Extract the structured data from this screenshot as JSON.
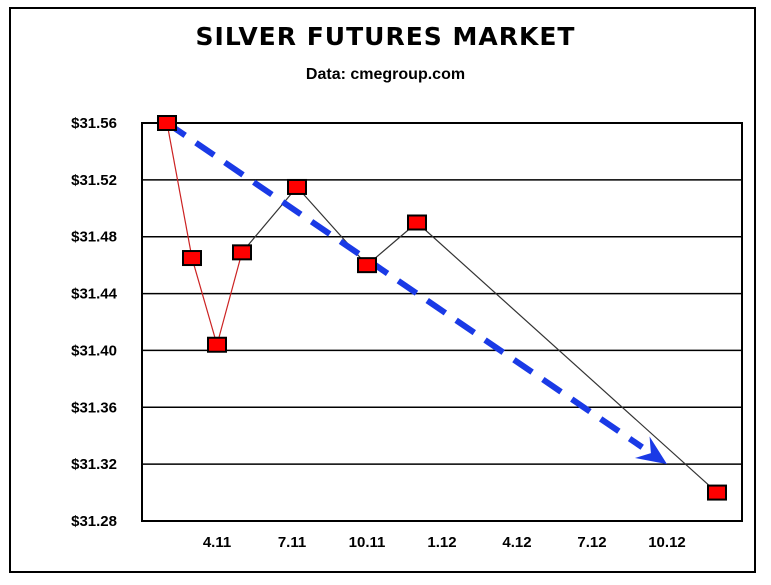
{
  "chart_data": {
    "type": "line",
    "title": "SILVER FUTURES MARKET",
    "subtitle": "Data: cmegroup.com",
    "xlabel": "",
    "ylabel": "",
    "y_ticks": [
      "$31.28",
      "$31.32",
      "$31.36",
      "$31.40",
      "$31.44",
      "$31.48",
      "$31.52",
      "$31.56"
    ],
    "x_ticks": [
      "4.11",
      "7.11",
      "10.11",
      "1.12",
      "4.12",
      "7.12",
      "10.12"
    ],
    "ylim": [
      31.28,
      31.56
    ],
    "grid": true,
    "series": [
      {
        "color": "#ff0000",
        "line_colors": [
          "#cc2222",
          "#cc2222",
          "#cc2222",
          "#333333",
          "#333333",
          "#333333",
          "#333333"
        ],
        "points": [
          {
            "x": 1.0,
            "y": 31.56
          },
          {
            "x": 2.0,
            "y": 31.465
          },
          {
            "x": 3.0,
            "y": 31.404
          },
          {
            "x": 4.0,
            "y": 31.469
          },
          {
            "x": 6.2,
            "y": 31.515
          },
          {
            "x": 9.0,
            "y": 31.46
          },
          {
            "x": 11.0,
            "y": 31.49
          },
          {
            "x": 23.0,
            "y": 31.3
          }
        ]
      }
    ],
    "trend_arrow": {
      "color": "#1a3ae6",
      "style": "dashed",
      "from": {
        "x": 1.0,
        "y": 31.56
      },
      "to": {
        "x": 21.0,
        "y": 31.32
      }
    }
  }
}
